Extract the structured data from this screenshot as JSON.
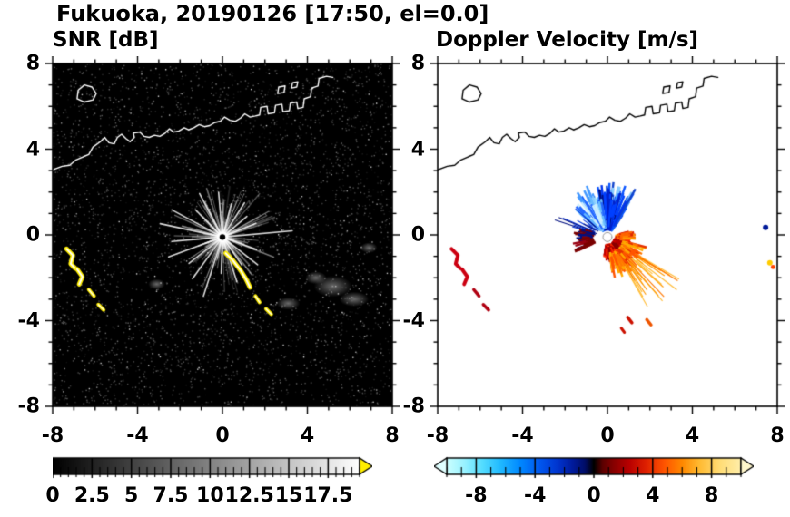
{
  "title": "Fukuoka, 20190126 [17:50, el=0.0]",
  "coastline": {
    "main": [
      [
        -8.1,
        3.0
      ],
      [
        -7.55,
        3.2
      ],
      [
        -7.2,
        3.25
      ],
      [
        -6.9,
        3.5
      ],
      [
        -6.55,
        3.65
      ],
      [
        -6.3,
        3.75
      ],
      [
        -6.1,
        4.1
      ],
      [
        -5.75,
        4.35
      ],
      [
        -5.55,
        4.55
      ],
      [
        -5.35,
        4.3
      ],
      [
        -5.1,
        4.25
      ],
      [
        -4.95,
        4.55
      ],
      [
        -4.75,
        4.7
      ],
      [
        -4.55,
        4.5
      ],
      [
        -4.35,
        4.35
      ],
      [
        -4.15,
        4.55
      ],
      [
        -4.2,
        4.75
      ],
      [
        -3.9,
        4.8
      ],
      [
        -3.7,
        4.6
      ],
      [
        -3.45,
        4.55
      ],
      [
        -3.2,
        4.65
      ],
      [
        -2.95,
        4.6
      ],
      [
        -2.7,
        4.75
      ],
      [
        -2.5,
        4.95
      ],
      [
        -2.3,
        4.8
      ],
      [
        -2.05,
        4.85
      ],
      [
        -1.8,
        5.0
      ],
      [
        -1.6,
        4.9
      ],
      [
        -1.35,
        5.0
      ],
      [
        -1.1,
        5.15
      ],
      [
        -0.85,
        5.05
      ],
      [
        -0.6,
        5.1
      ],
      [
        -0.35,
        5.25
      ],
      [
        -0.1,
        5.3
      ],
      [
        0.1,
        5.5
      ],
      [
        0.35,
        5.35
      ],
      [
        0.6,
        5.3
      ],
      [
        0.85,
        5.45
      ],
      [
        1.05,
        5.65
      ],
      [
        1.3,
        5.5
      ],
      [
        1.55,
        5.55
      ],
      [
        1.75,
        5.6
      ],
      [
        1.8,
        5.95
      ],
      [
        2.1,
        6.0
      ],
      [
        2.15,
        5.65
      ],
      [
        2.45,
        5.7
      ],
      [
        2.5,
        6.05
      ],
      [
        2.8,
        6.1
      ],
      [
        2.85,
        5.75
      ],
      [
        3.15,
        5.8
      ],
      [
        3.2,
        6.15
      ],
      [
        3.5,
        6.2
      ],
      [
        3.55,
        5.9
      ],
      [
        3.8,
        5.95
      ],
      [
        3.85,
        6.35
      ],
      [
        4.15,
        6.45
      ],
      [
        4.2,
        6.85
      ],
      [
        4.5,
        6.95
      ],
      [
        4.55,
        7.3
      ],
      [
        4.9,
        7.4
      ],
      [
        5.2,
        7.35
      ]
    ],
    "island": [
      [
        -6.85,
        6.35
      ],
      [
        -6.5,
        6.2
      ],
      [
        -6.1,
        6.3
      ],
      [
        -5.95,
        6.6
      ],
      [
        -6.15,
        6.9
      ],
      [
        -6.5,
        7.0
      ],
      [
        -6.8,
        6.75
      ]
    ],
    "docks": [
      [
        [
          2.6,
          6.6
        ],
        [
          2.9,
          6.65
        ],
        [
          2.95,
          6.95
        ],
        [
          2.65,
          6.9
        ]
      ],
      [
        [
          3.25,
          6.85
        ],
        [
          3.5,
          6.9
        ],
        [
          3.55,
          7.15
        ],
        [
          3.3,
          7.1
        ]
      ]
    ]
  },
  "chart_data": [
    {
      "type": "heatmap",
      "title": "SNR [dB]",
      "xlim": [
        -8,
        8
      ],
      "ylim": [
        -8,
        8
      ],
      "xticks": [
        -8,
        -4,
        0,
        4,
        8
      ],
      "xtick_labels": [
        "-8",
        "-4",
        "0",
        "4",
        "8"
      ],
      "yticks": [
        -8,
        -4,
        0,
        4,
        8
      ],
      "ytick_labels": [
        "-8",
        "-4",
        "0",
        "4",
        "8"
      ],
      "minor_tick_step": 1,
      "background": "#000000",
      "frame_color": "#000000",
      "coast_color": "#ffffff",
      "radar_center": [
        0,
        -0.1
      ],
      "center_marker": "snr",
      "center_glow": 0.5,
      "speckle": {
        "count": 4200,
        "seed": 11
      },
      "streaks": {
        "count": 120,
        "seed": 5,
        "color": "#ffffff"
      },
      "spokes": [
        [
          5,
          3.3
        ],
        [
          22,
          1.7
        ],
        [
          40,
          1.5
        ],
        [
          57,
          1.9
        ],
        [
          75,
          1.6
        ],
        [
          95,
          2.1
        ],
        [
          118,
          2.3
        ],
        [
          135,
          1.8
        ],
        [
          152,
          2.7
        ],
        [
          168,
          3.0
        ],
        [
          185,
          2.4
        ],
        [
          200,
          2.7
        ],
        [
          218,
          2.0
        ],
        [
          234,
          2.4
        ],
        [
          252,
          2.9
        ],
        [
          268,
          1.7
        ],
        [
          288,
          2.2
        ],
        [
          305,
          1.6
        ],
        [
          322,
          2.1
        ],
        [
          340,
          1.7
        ]
      ],
      "clouds": [
        [
          5.2,
          -2.4,
          0.9,
          0.5
        ],
        [
          6.2,
          -3.0,
          0.7,
          0.35
        ],
        [
          3.1,
          -3.2,
          0.55,
          0.3
        ],
        [
          6.9,
          -0.6,
          0.4,
          0.25
        ],
        [
          4.4,
          -2.0,
          0.5,
          0.3
        ],
        [
          -3.1,
          -2.3,
          0.4,
          0.25
        ]
      ],
      "arcs": [
        {
          "color": "#ffee00",
          "core": "#ffffff",
          "width": 5,
          "points": [
            [
              -7.35,
              -0.65
            ],
            [
              -7.05,
              -0.95
            ],
            [
              -7.15,
              -1.35
            ],
            [
              -6.95,
              -1.55
            ]
          ]
        },
        {
          "color": "#ffee00",
          "core": "#ffffff",
          "width": 5,
          "points": [
            [
              -6.85,
              -1.6
            ],
            [
              -6.6,
              -1.95
            ],
            [
              -6.75,
              -2.3
            ]
          ]
        },
        {
          "color": "#ffee00",
          "core": "#ffffff",
          "width": 4,
          "points": [
            [
              -6.3,
              -2.55
            ],
            [
              -6.05,
              -2.85
            ]
          ]
        },
        {
          "color": "#ffee00",
          "core": "#ffffff",
          "width": 4,
          "points": [
            [
              -5.85,
              -3.25
            ],
            [
              -5.6,
              -3.5
            ]
          ]
        },
        {
          "color": "#ffee00",
          "core": "#ffffff",
          "width": 5,
          "points": [
            [
              0.15,
              -0.85
            ],
            [
              0.5,
              -1.2
            ],
            [
              0.85,
              -1.65
            ],
            [
              1.1,
              -2.05
            ],
            [
              1.3,
              -2.45
            ]
          ]
        },
        {
          "color": "#ffee00",
          "core": "#ffffff",
          "width": 4,
          "points": [
            [
              1.55,
              -2.85
            ],
            [
              1.75,
              -3.15
            ]
          ]
        },
        {
          "color": "#ffee00",
          "core": "#ffffff",
          "width": 4,
          "points": [
            [
              2.05,
              -3.45
            ],
            [
              2.3,
              -3.7
            ]
          ]
        }
      ],
      "colorbar": {
        "range": [
          0,
          19.5
        ],
        "tick_values": [
          0,
          2.5,
          5,
          7.5,
          10,
          12.5,
          15,
          17.5
        ],
        "tick_labels": [
          "0",
          "2.5",
          "5",
          "7.5",
          "10",
          "12.5",
          "15",
          "17.5"
        ],
        "minor_step": 0.5,
        "stops": [
          [
            0,
            "#000000"
          ],
          [
            1,
            "#ffffff"
          ]
        ],
        "arrow_right": "#ffee00"
      }
    },
    {
      "type": "heatmap",
      "title": "Doppler Velocity [m/s]",
      "xlim": [
        -8,
        8
      ],
      "ylim": [
        -8,
        8
      ],
      "xticks": [
        -8,
        -4,
        0,
        4,
        8
      ],
      "xtick_labels": [
        "-8",
        "-4",
        "0",
        "4",
        "8"
      ],
      "yticks": [
        -8,
        -4,
        0,
        4,
        8
      ],
      "ytick_labels": [
        "-8",
        "-4",
        "0",
        "4",
        "8"
      ],
      "minor_tick_step": 1,
      "background": "#ffffff",
      "frame_color": "#000000",
      "coast_color": "#000000",
      "radar_center": [
        0,
        -0.1
      ],
      "center_marker": "ring",
      "wedges": [
        {
          "seed": 21,
          "angle": [
            55,
            128
          ],
          "rmin": 0.3,
          "rmax": 2.6,
          "count": 200,
          "colors": [
            "#0033ee",
            "#0a55ff",
            "#4499ff",
            "#88ccff",
            "#1144cc"
          ]
        },
        {
          "seed": 22,
          "angle": [
            68,
            100
          ],
          "rmin": 0.3,
          "rmax": 2.3,
          "count": 130,
          "colors": [
            "#000f80",
            "#0022cc",
            "#0040ff"
          ]
        },
        {
          "seed": 26,
          "angle": [
            98,
            140
          ],
          "rmin": 0.4,
          "rmax": 2.1,
          "count": 80,
          "colors": [
            "#66bbff",
            "#99ddff",
            "#cceeff",
            "#2266ff"
          ]
        },
        {
          "seed": 27,
          "angle": [
            130,
            176
          ],
          "rmin": 0.5,
          "rmax": 3.0,
          "count": 14,
          "thin": true,
          "colors": [
            "#000f80",
            "#0033dd"
          ]
        },
        {
          "seed": 23,
          "angle": [
            -100,
            -8
          ],
          "rmin": 0.3,
          "rmax": 1.2,
          "count": 160,
          "colors": [
            "#8a0000",
            "#b40000",
            "#d40000",
            "#ff2a00"
          ]
        },
        {
          "seed": 28,
          "angle": [
            -82,
            -14
          ],
          "rmin": 0.7,
          "rmax": 2.0,
          "count": 120,
          "colors": [
            "#ff5500",
            "#ff7700",
            "#e63000",
            "#ffaa00"
          ]
        },
        {
          "seed": 24,
          "angle": [
            -62,
            -30
          ],
          "rmin": 1.4,
          "rmax": 4.2,
          "count": 28,
          "thin": true,
          "colors": [
            "#ff9900",
            "#ffbb33",
            "#ff7700"
          ]
        },
        {
          "seed": 29,
          "angle": [
            -10,
            14
          ],
          "rmin": 0.35,
          "rmax": 1.35,
          "count": 45,
          "colors": [
            "#ff6600",
            "#dd2200",
            "#ff9900"
          ]
        },
        {
          "seed": 25,
          "angle": [
            162,
            206
          ],
          "rmin": 0.6,
          "rmax": 1.7,
          "count": 45,
          "colors": [
            "#7a0000",
            "#990011",
            "#001080"
          ]
        }
      ],
      "arcs": [
        {
          "color": "#cc0011",
          "width": 4,
          "points": [
            [
              -7.35,
              -0.65
            ],
            [
              -7.05,
              -0.95
            ],
            [
              -7.15,
              -1.35
            ],
            [
              -6.95,
              -1.55
            ]
          ]
        },
        {
          "color": "#cc0011",
          "width": 4,
          "points": [
            [
              -6.85,
              -1.6
            ],
            [
              -6.6,
              -1.95
            ],
            [
              -6.75,
              -2.3
            ]
          ]
        },
        {
          "color": "#b00011",
          "width": 3.5,
          "points": [
            [
              -6.3,
              -2.55
            ],
            [
              -6.05,
              -2.85
            ]
          ]
        },
        {
          "color": "#b00011",
          "width": 3.5,
          "points": [
            [
              -5.85,
              -3.25
            ],
            [
              -5.6,
              -3.5
            ]
          ]
        },
        {
          "color": "#cc1100",
          "width": 3.5,
          "points": [
            [
              0.95,
              -3.85
            ],
            [
              1.15,
              -4.1
            ]
          ]
        },
        {
          "color": "#ee5500",
          "width": 3.5,
          "points": [
            [
              1.85,
              -3.95
            ],
            [
              2.05,
              -4.2
            ]
          ]
        },
        {
          "color": "#cc1100",
          "width": 3,
          "points": [
            [
              0.65,
              -4.35
            ],
            [
              0.8,
              -4.55
            ]
          ]
        }
      ],
      "specks": [
        {
          "x": 7.45,
          "y": 0.35,
          "color": "#001a99",
          "r": 3
        },
        {
          "x": 7.65,
          "y": -1.3,
          "color": "#ffcc00",
          "r": 3
        },
        {
          "x": 7.8,
          "y": -1.5,
          "color": "#ff4400",
          "r": 2.4
        }
      ],
      "colorbar": {
        "range": [
          -10,
          10
        ],
        "tick_values": [
          -8,
          -4,
          0,
          4,
          8
        ],
        "tick_labels": [
          "-8",
          "-4",
          "0",
          "4",
          "8"
        ],
        "minor_step": 1,
        "stops": [
          [
            0,
            "#ccffff"
          ],
          [
            0.06,
            "#99f2ff"
          ],
          [
            0.12,
            "#55ddff"
          ],
          [
            0.18,
            "#22bbff"
          ],
          [
            0.25,
            "#0088ff"
          ],
          [
            0.32,
            "#0055ee"
          ],
          [
            0.38,
            "#0033cc"
          ],
          [
            0.43,
            "#001a99"
          ],
          [
            0.47,
            "#000d66"
          ],
          [
            0.5,
            "#000000"
          ],
          [
            0.53,
            "#5c0000"
          ],
          [
            0.57,
            "#8a0000"
          ],
          [
            0.62,
            "#b80000"
          ],
          [
            0.68,
            "#e02200"
          ],
          [
            0.74,
            "#ff5500"
          ],
          [
            0.8,
            "#ff8800"
          ],
          [
            0.86,
            "#ffbb33"
          ],
          [
            0.93,
            "#ffdd77"
          ],
          [
            1,
            "#ffeeaa"
          ]
        ],
        "arrow_left": "#e0ffff",
        "arrow_right": "#fff7cc"
      }
    }
  ]
}
